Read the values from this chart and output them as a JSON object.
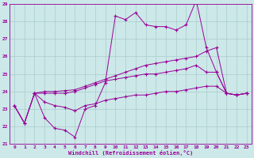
{
  "xlabel": "Windchill (Refroidissement éolien,°C)",
  "background_color": "#cce8e8",
  "grid_color": "#aacccc",
  "line_color": "#990099",
  "xlim": [
    -0.5,
    23.5
  ],
  "ylim": [
    21,
    29
  ],
  "xticks": [
    0,
    1,
    2,
    3,
    4,
    5,
    6,
    7,
    8,
    9,
    10,
    11,
    12,
    13,
    14,
    15,
    16,
    17,
    18,
    19,
    20,
    21,
    22,
    23
  ],
  "yticks": [
    21,
    22,
    23,
    24,
    25,
    26,
    27,
    28,
    29
  ],
  "line1_x": [
    0,
    1,
    2,
    3,
    4,
    5,
    6,
    7,
    8,
    9,
    10,
    11,
    12,
    13,
    14,
    15,
    16,
    17,
    18,
    19,
    20,
    21,
    22,
    23
  ],
  "line1_y": [
    23.2,
    22.2,
    23.9,
    22.5,
    21.9,
    21.8,
    21.4,
    23.0,
    23.2,
    24.5,
    28.3,
    28.1,
    28.5,
    27.8,
    27.7,
    27.7,
    27.5,
    27.8,
    29.2,
    26.5,
    25.1,
    23.9,
    23.8,
    23.9
  ],
  "line2_x": [
    2,
    3,
    4,
    5,
    6,
    7,
    8,
    9,
    10,
    11,
    12,
    13,
    14,
    15,
    16,
    17,
    18,
    19,
    20,
    21,
    22,
    23
  ],
  "line2_y": [
    23.9,
    24.0,
    24.0,
    24.05,
    24.1,
    24.3,
    24.5,
    24.7,
    24.9,
    25.1,
    25.3,
    25.5,
    25.6,
    25.7,
    25.8,
    25.9,
    26.0,
    26.3,
    26.5,
    23.9,
    23.8,
    23.9
  ],
  "line3_x": [
    0,
    1,
    2,
    3,
    4,
    5,
    6,
    7,
    8,
    9,
    10,
    11,
    12,
    13,
    14,
    15,
    16,
    17,
    18,
    19,
    20,
    21,
    22,
    23
  ],
  "line3_y": [
    23.2,
    22.2,
    23.9,
    23.9,
    23.9,
    23.9,
    24.0,
    24.2,
    24.4,
    24.6,
    24.7,
    24.8,
    24.9,
    25.0,
    25.0,
    25.1,
    25.2,
    25.3,
    25.5,
    25.1,
    25.1,
    23.9,
    23.8,
    23.9
  ],
  "line4_x": [
    0,
    1,
    2,
    3,
    4,
    5,
    6,
    7,
    8,
    9,
    10,
    11,
    12,
    13,
    14,
    15,
    16,
    17,
    18,
    19,
    20,
    21,
    22,
    23
  ],
  "line4_y": [
    23.2,
    22.2,
    23.9,
    23.4,
    23.2,
    23.1,
    22.9,
    23.2,
    23.3,
    23.5,
    23.6,
    23.7,
    23.8,
    23.8,
    23.9,
    24.0,
    24.0,
    24.1,
    24.2,
    24.3,
    24.3,
    23.9,
    23.8,
    23.9
  ]
}
